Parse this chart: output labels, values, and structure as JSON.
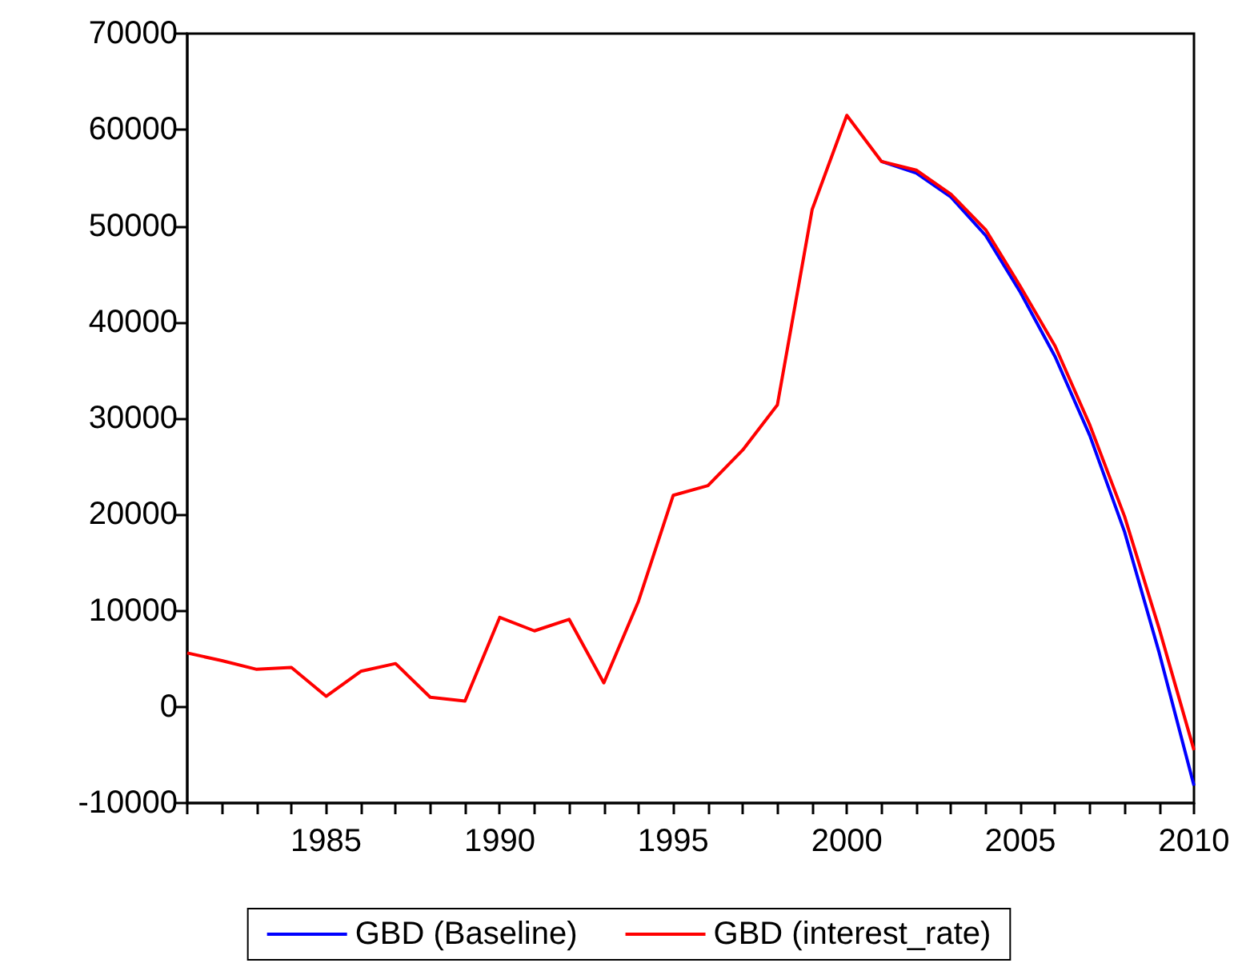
{
  "chart_data": {
    "type": "line",
    "x": [
      1981,
      1982,
      1983,
      1984,
      1985,
      1986,
      1987,
      1988,
      1989,
      1990,
      1991,
      1992,
      1993,
      1994,
      1995,
      1996,
      1997,
      1998,
      1999,
      2000,
      2001,
      2002,
      2003,
      2004,
      2005,
      2006,
      2007,
      2008,
      2009,
      2010
    ],
    "series": [
      {
        "name": "GBD (Baseline)",
        "color": "#0000ff",
        "values": [
          null,
          null,
          null,
          null,
          null,
          null,
          null,
          null,
          null,
          null,
          null,
          null,
          null,
          null,
          null,
          null,
          null,
          null,
          null,
          null,
          56700,
          55500,
          53000,
          49000,
          43100,
          36400,
          28200,
          18200,
          5600,
          -8200
        ]
      },
      {
        "name": "GBD (interest_rate)",
        "color": "#ff0000",
        "values": [
          5600,
          4800,
          3900,
          4100,
          1100,
          3700,
          4500,
          1000,
          600,
          9300,
          7900,
          9100,
          2500,
          11000,
          22000,
          23000,
          26700,
          31400,
          51700,
          61500,
          56700,
          55800,
          53300,
          49600,
          43700,
          37500,
          29300,
          19800,
          8100,
          -4500
        ]
      }
    ],
    "xlim": [
      1981,
      2010
    ],
    "xticks": [
      {
        "value": 1981,
        "label": null
      },
      {
        "value": 1982,
        "label": null
      },
      {
        "value": 1983,
        "label": null
      },
      {
        "value": 1984,
        "label": null
      },
      1985,
      {
        "value": 1986,
        "label": null
      },
      {
        "value": 1987,
        "label": null
      },
      {
        "value": 1988,
        "label": null
      },
      {
        "value": 1989,
        "label": null
      },
      1990,
      {
        "value": 1991,
        "label": null
      },
      {
        "value": 1992,
        "label": null
      },
      {
        "value": 1993,
        "label": null
      },
      {
        "value": 1994,
        "label": null
      },
      1995,
      {
        "value": 1996,
        "label": null
      },
      {
        "value": 1997,
        "label": null
      },
      {
        "value": 1998,
        "label": null
      },
      {
        "value": 1999,
        "label": null
      },
      2000,
      {
        "value": 2001,
        "label": null
      },
      {
        "value": 2002,
        "label": null
      },
      {
        "value": 2003,
        "label": null
      },
      {
        "value": 2004,
        "label": null
      },
      2005,
      {
        "value": 2006,
        "label": null
      },
      {
        "value": 2007,
        "label": null
      },
      {
        "value": 2008,
        "label": null
      },
      {
        "value": 2009,
        "label": null
      },
      2010
    ],
    "ylim": [
      -10000,
      70000
    ],
    "yticks": [
      -10000,
      0,
      10000,
      20000,
      30000,
      40000,
      50000,
      60000,
      70000
    ],
    "grid": false,
    "legend": "bottom",
    "marker": "none",
    "line_style": "solid"
  }
}
